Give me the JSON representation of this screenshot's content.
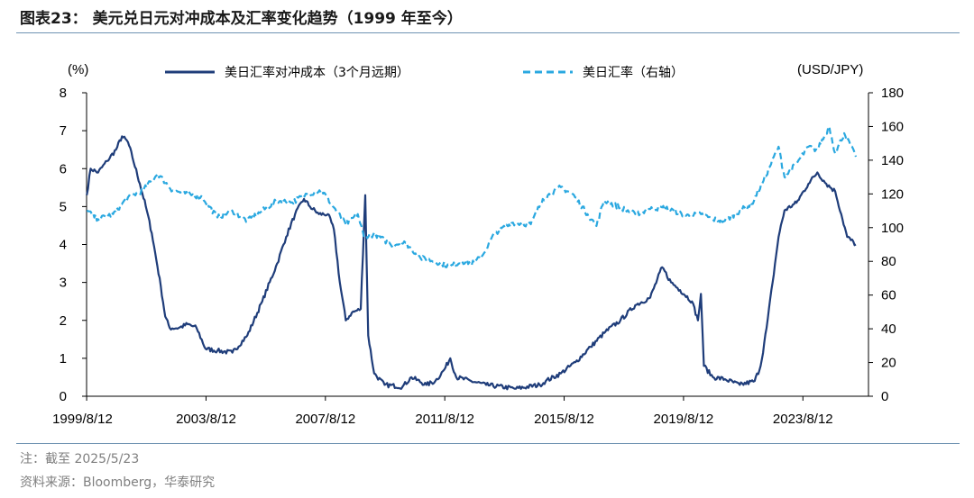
{
  "figure": {
    "title": "图表23：  美元兑日元对冲成本及汇率变化趋势（1999 年至今）",
    "note": "注：截至 2025/5/23",
    "source": "资料来源：Bloomberg，华泰研究"
  },
  "chart_data": {
    "type": "line",
    "title": "",
    "x_tick_labels": [
      "1999/8/12",
      "2003/8/12",
      "2007/8/12",
      "2011/8/12",
      "2015/8/12",
      "2019/8/12",
      "2023/8/12"
    ],
    "x_range": [
      "1999/8/12",
      "2025/5/23"
    ],
    "y_left": {
      "unit": "(%)",
      "min": 0,
      "max": 8,
      "ticks": [
        "0",
        "1",
        "2",
        "3",
        "4",
        "5",
        "6",
        "7",
        "8"
      ]
    },
    "y_right": {
      "unit": "(USD/JPY)",
      "min": 0,
      "max": 180,
      "ticks": [
        "0",
        "20",
        "40",
        "60",
        "80",
        "100",
        "120",
        "140",
        "160",
        "180"
      ]
    },
    "grid": false,
    "legend_position": "top",
    "series": [
      {
        "name": "美日汇率对冲成本（3个月远期）",
        "axis": "left",
        "style": "solid",
        "color": "#1f3d7a",
        "points": [
          [
            1999.62,
            5.3
          ],
          [
            1999.75,
            6.0
          ],
          [
            2000.0,
            5.9
          ],
          [
            2000.3,
            6.2
          ],
          [
            2000.6,
            6.5
          ],
          [
            2000.8,
            6.85
          ],
          [
            2001.0,
            6.7
          ],
          [
            2001.15,
            6.3
          ],
          [
            2001.4,
            5.6
          ],
          [
            2001.6,
            5.0
          ],
          [
            2001.8,
            4.3
          ],
          [
            2001.95,
            3.6
          ],
          [
            2002.1,
            2.9
          ],
          [
            2002.25,
            2.1
          ],
          [
            2002.4,
            1.8
          ],
          [
            2002.7,
            1.8
          ],
          [
            2003.0,
            1.9
          ],
          [
            2003.3,
            1.8
          ],
          [
            2003.6,
            1.25
          ],
          [
            2004.0,
            1.2
          ],
          [
            2004.5,
            1.15
          ],
          [
            2005.0,
            1.6
          ],
          [
            2005.5,
            2.5
          ],
          [
            2006.0,
            3.5
          ],
          [
            2006.3,
            4.2
          ],
          [
            2006.6,
            4.8
          ],
          [
            2006.9,
            5.2
          ],
          [
            2007.1,
            5.0
          ],
          [
            2007.4,
            4.8
          ],
          [
            2007.7,
            4.8
          ],
          [
            2007.9,
            4.4
          ],
          [
            2008.1,
            3.0
          ],
          [
            2008.3,
            2.0
          ],
          [
            2008.5,
            2.2
          ],
          [
            2008.8,
            2.3
          ],
          [
            2008.95,
            5.3
          ],
          [
            2009.05,
            1.6
          ],
          [
            2009.25,
            0.6
          ],
          [
            2009.6,
            0.3
          ],
          [
            2010.2,
            0.25
          ],
          [
            2010.5,
            0.5
          ],
          [
            2011.0,
            0.3
          ],
          [
            2011.3,
            0.4
          ],
          [
            2011.6,
            0.7
          ],
          [
            2011.8,
            1.0
          ],
          [
            2012.0,
            0.5
          ],
          [
            2012.5,
            0.4
          ],
          [
            2013.0,
            0.3
          ],
          [
            2014.0,
            0.2
          ],
          [
            2014.8,
            0.3
          ],
          [
            2015.0,
            0.4
          ],
          [
            2015.5,
            0.6
          ],
          [
            2016.0,
            0.9
          ],
          [
            2016.5,
            1.3
          ],
          [
            2017.0,
            1.7
          ],
          [
            2017.5,
            2.0
          ],
          [
            2018.0,
            2.4
          ],
          [
            2018.5,
            2.6
          ],
          [
            2018.9,
            3.4
          ],
          [
            2019.2,
            3.0
          ],
          [
            2019.5,
            2.8
          ],
          [
            2019.9,
            2.5
          ],
          [
            2020.1,
            2.0
          ],
          [
            2020.2,
            2.7
          ],
          [
            2020.3,
            0.8
          ],
          [
            2020.6,
            0.5
          ],
          [
            2021.0,
            0.45
          ],
          [
            2021.5,
            0.3
          ],
          [
            2022.0,
            0.4
          ],
          [
            2022.2,
            0.8
          ],
          [
            2022.4,
            1.8
          ],
          [
            2022.6,
            3.0
          ],
          [
            2022.8,
            4.2
          ],
          [
            2023.0,
            4.9
          ],
          [
            2023.4,
            5.1
          ],
          [
            2023.8,
            5.6
          ],
          [
            2024.1,
            5.9
          ],
          [
            2024.4,
            5.6
          ],
          [
            2024.7,
            5.4
          ],
          [
            2024.9,
            4.8
          ],
          [
            2025.1,
            4.2
          ],
          [
            2025.39,
            4.0
          ]
        ]
      },
      {
        "name": "美日汇率（右轴）",
        "axis": "right",
        "style": "dashed",
        "color": "#2aa8e0",
        "points": [
          [
            1999.62,
            110
          ],
          [
            2000.0,
            105
          ],
          [
            2000.5,
            108
          ],
          [
            2001.0,
            118
          ],
          [
            2001.5,
            122
          ],
          [
            2002.0,
            132
          ],
          [
            2002.5,
            122
          ],
          [
            2003.0,
            120
          ],
          [
            2003.5,
            118
          ],
          [
            2004.0,
            106
          ],
          [
            2004.5,
            110
          ],
          [
            2005.0,
            104
          ],
          [
            2005.5,
            110
          ],
          [
            2006.0,
            116
          ],
          [
            2006.5,
            115
          ],
          [
            2007.0,
            120
          ],
          [
            2007.5,
            122
          ],
          [
            2007.9,
            112
          ],
          [
            2008.3,
            102
          ],
          [
            2008.7,
            108
          ],
          [
            2008.9,
            95
          ],
          [
            2009.3,
            96
          ],
          [
            2009.8,
            90
          ],
          [
            2010.3,
            91
          ],
          [
            2010.8,
            82
          ],
          [
            2011.3,
            80
          ],
          [
            2011.8,
            77
          ],
          [
            2012.2,
            80
          ],
          [
            2012.6,
            79
          ],
          [
            2012.9,
            84
          ],
          [
            2013.3,
            97
          ],
          [
            2013.9,
            103
          ],
          [
            2014.5,
            102
          ],
          [
            2014.9,
            117
          ],
          [
            2015.5,
            124
          ],
          [
            2015.9,
            120
          ],
          [
            2016.4,
            108
          ],
          [
            2016.7,
            101
          ],
          [
            2016.95,
            116
          ],
          [
            2017.5,
            112
          ],
          [
            2018.0,
            108
          ],
          [
            2018.5,
            111
          ],
          [
            2018.9,
            112
          ],
          [
            2019.3,
            110
          ],
          [
            2019.7,
            107
          ],
          [
            2020.2,
            108
          ],
          [
            2020.6,
            105
          ],
          [
            2021.0,
            104
          ],
          [
            2021.5,
            110
          ],
          [
            2021.9,
            114
          ],
          [
            2022.3,
            128
          ],
          [
            2022.8,
            148
          ],
          [
            2023.0,
            130
          ],
          [
            2023.4,
            138
          ],
          [
            2023.8,
            148
          ],
          [
            2024.1,
            146
          ],
          [
            2024.5,
            160
          ],
          [
            2024.7,
            144
          ],
          [
            2025.0,
            156
          ],
          [
            2025.39,
            142
          ]
        ]
      }
    ]
  }
}
